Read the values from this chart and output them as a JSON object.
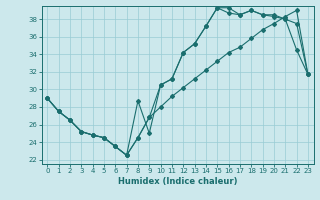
{
  "title": "",
  "xlabel": "Humidex (Indice chaleur)",
  "bg_color": "#cce8ec",
  "grid_color": "#99ccd4",
  "line_color": "#1a6e6e",
  "xlim": [
    -0.5,
    23.5
  ],
  "ylim": [
    21.5,
    39.5
  ],
  "yticks": [
    22,
    24,
    26,
    28,
    30,
    32,
    34,
    36,
    38
  ],
  "xticks": [
    0,
    1,
    2,
    3,
    4,
    5,
    6,
    7,
    8,
    9,
    10,
    11,
    12,
    13,
    14,
    15,
    16,
    17,
    18,
    19,
    20,
    21,
    22,
    23
  ],
  "line1_x": [
    0,
    1,
    2,
    3,
    4,
    5,
    6,
    7,
    8,
    9,
    10,
    11,
    12,
    13,
    14,
    15,
    16,
    17,
    18,
    19,
    20,
    21,
    22,
    23
  ],
  "line1_y": [
    29.0,
    27.5,
    26.5,
    25.2,
    24.8,
    24.5,
    23.5,
    22.5,
    28.7,
    25.0,
    30.5,
    31.2,
    34.2,
    35.2,
    37.2,
    39.3,
    39.3,
    38.5,
    39.0,
    38.5,
    38.3,
    38.0,
    37.5,
    31.7
  ],
  "line2_x": [
    0,
    1,
    2,
    3,
    4,
    5,
    6,
    7,
    8,
    9,
    10,
    11,
    12,
    13,
    14,
    15,
    16,
    17,
    18,
    19,
    20,
    21,
    22,
    23
  ],
  "line2_y": [
    29.0,
    27.5,
    26.5,
    25.2,
    24.8,
    24.5,
    23.5,
    22.5,
    24.5,
    26.8,
    30.5,
    31.2,
    34.2,
    35.2,
    37.2,
    39.3,
    38.7,
    38.5,
    39.0,
    38.5,
    38.5,
    38.0,
    34.5,
    31.7
  ],
  "line3_x": [
    0,
    1,
    2,
    3,
    4,
    5,
    6,
    7,
    8,
    9,
    10,
    11,
    12,
    13,
    14,
    15,
    16,
    17,
    18,
    19,
    20,
    21,
    22,
    23
  ],
  "line3_y": [
    29.0,
    27.5,
    26.5,
    25.2,
    24.8,
    24.5,
    23.5,
    22.5,
    24.5,
    26.8,
    28.0,
    29.2,
    30.2,
    31.2,
    32.2,
    33.2,
    34.2,
    34.8,
    35.8,
    36.8,
    37.5,
    38.3,
    39.0,
    31.7
  ]
}
